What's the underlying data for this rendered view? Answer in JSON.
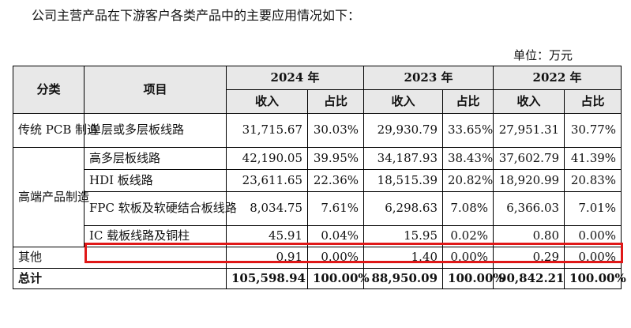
{
  "intro": "公司主营产品在下游客户各类产品中的主要应用情况如下：",
  "unit": "单位：万元",
  "header": {
    "category": "分类",
    "item": "项目",
    "years": [
      "2024 年",
      "2023 年",
      "2022 年"
    ],
    "revenue": "收入",
    "share": "占比"
  },
  "rows": [
    {
      "category": "传统 PCB 制造",
      "item": "单层或多层板线路",
      "values": [
        "31,715.67",
        "30.03%",
        "29,930.79",
        "33.65%",
        "27,951.31",
        "30.77%"
      ]
    },
    {
      "category": "高端产品制造",
      "item": "高多层板线路",
      "values": [
        "42,190.05",
        "39.95%",
        "34,187.93",
        "38.43%",
        "37,602.79",
        "41.39%"
      ]
    },
    {
      "item": "HDI 板线路",
      "values": [
        "23,611.65",
        "22.36%",
        "18,515.39",
        "20.82%",
        "18,920.99",
        "20.83%"
      ]
    },
    {
      "item": "FPC 软板及软硬结合板线路",
      "values": [
        "8,034.75",
        "7.61%",
        "6,298.63",
        "7.08%",
        "6,366.03",
        "7.01%"
      ]
    },
    {
      "item": "IC 载板线路及铜柱",
      "values": [
        "45.91",
        "0.04%",
        "15.95",
        "0.02%",
        "0.80",
        "0.00%"
      ]
    },
    {
      "category": "其他",
      "values": [
        "0.91",
        "0.00%",
        "1.40",
        "0.00%",
        "0.29",
        "0.00%"
      ]
    }
  ],
  "total": {
    "label": "总计",
    "values": [
      "105,598.94",
      "100.00%",
      "88,950.09",
      "100.00%",
      "90,842.21",
      "100.00%"
    ]
  },
  "highlight_color": "#e01818"
}
